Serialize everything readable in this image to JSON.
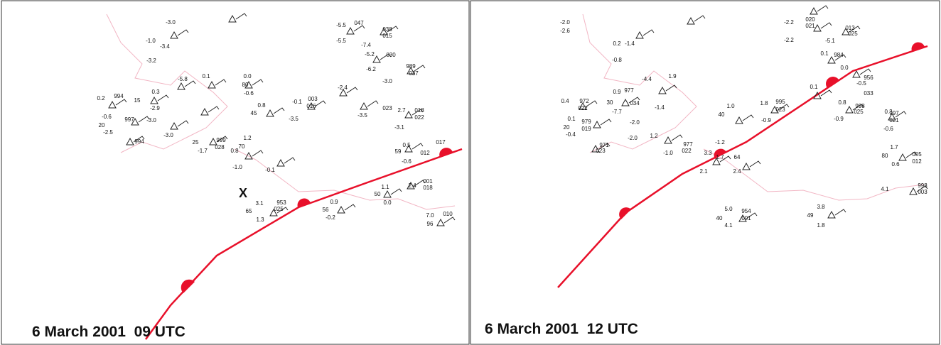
{
  "panels": [
    {
      "caption": "6 March 2001  09 UTC",
      "marker": "X",
      "labels": [
        "-3.0",
        "-1.0",
        "-3.4",
        "-3.2",
        "-5.8",
        "0.1",
        "0.0",
        "80",
        "-0.6",
        "0.2",
        "994",
        "-0.6",
        "997",
        "20",
        "-2.5",
        "15",
        "0.3",
        "-2.9",
        "-3.0",
        "-3.0",
        "994",
        "0.8",
        "45",
        "-0.1",
        "003",
        "016",
        "-3.5",
        "25",
        "-1.7",
        "999",
        "028",
        "0.8",
        "1.2",
        "70",
        "-1.0",
        "-0.1",
        "-5.5",
        "-5.5",
        "047",
        "038",
        "015",
        "-7.4",
        "-5.2",
        "030",
        "-6.2",
        "989",
        "037",
        "-3.0",
        "-2.4",
        "-3.5",
        "023",
        "2.7",
        "018",
        "022",
        "-3.1",
        "0.5",
        "59",
        "017",
        "012",
        "-0.6",
        "1.1",
        "50",
        "0.0",
        "001",
        "018",
        "2.4",
        "3.1",
        "65",
        "953",
        "025",
        "1.3",
        "0.9",
        "56",
        "-0.2",
        "7.0",
        "010",
        "96"
      ]
    },
    {
      "caption": "6 March 2001  12 UTC",
      "labels": [
        "-2.0",
        "-2.6",
        "0.2",
        "-1.4",
        "-0.8",
        "-4.4",
        "1.9",
        "0.4",
        "972",
        "022",
        "0.1",
        "20",
        "-0.4",
        "979",
        "019",
        "023",
        "971",
        "0.9",
        "30",
        "-7.7",
        "977",
        "034",
        "-1.4",
        "-2.0",
        "-2.0",
        "1.2",
        "977",
        "022",
        "-1.0",
        "1.0",
        "40",
        "-0.9",
        "1.8",
        "995",
        "023",
        "3.3",
        "2.1",
        "1.7",
        "-1.2",
        "64",
        "2.4",
        "-2.2",
        "-2.2",
        "020",
        "021",
        "013",
        "025",
        "-5.1",
        "0.1",
        "984",
        "0.0",
        "956",
        "033",
        "-0.5",
        "0.1",
        "0.8",
        "998",
        "025",
        "0.3",
        "997",
        "021",
        "-0.9",
        "-0.6",
        "1.7",
        "80",
        "005",
        "012",
        "0.6",
        "4.1",
        "998",
        "003",
        "3.8",
        "49",
        "1.8",
        "5.0",
        "954",
        "40",
        "001",
        "4.1"
      ]
    }
  ]
}
